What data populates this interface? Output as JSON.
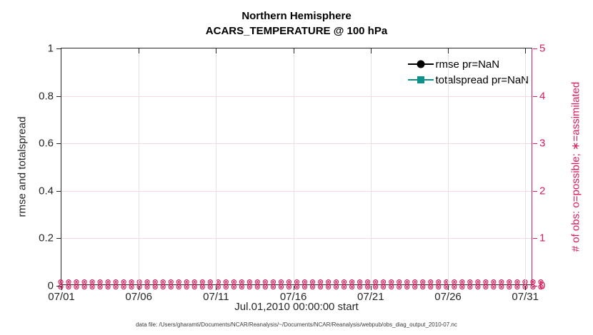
{
  "figure": {
    "title_line1": "Northern Hemisphere",
    "title_line2": "ACARS_TEMPERATURE @ 100 hPa",
    "xlabel": "Jul.01,2010 00:00:00 start",
    "footer": "data file: /Users/gharamti/Documents/NCAR/Reanalysis/~/Documents/NCAR/Reanalysis/webpub/obs_diag_output_2010-07.nc"
  },
  "colors": {
    "pink_accent": "#d81c5c",
    "teal_accent": "#0f918b",
    "axis_dark": "#262626",
    "grid_vertical": "#e3e3e3",
    "grid_horizontal_pink": "#f7d9e4"
  },
  "legend": {
    "items": [
      {
        "label": "rmse pr=NaN",
        "color": "#000000",
        "marker": "circle"
      },
      {
        "label": "totalspread pr=NaN",
        "color": "#0f918b",
        "marker": "square"
      }
    ]
  },
  "chart_data": {
    "type": "line",
    "title": "Northern Hemisphere",
    "subtitle": "ACARS_TEMPERATURE @ 100 hPa",
    "xlabel": "Jul.01,2010 00:00:00 start",
    "x_tick_labels": [
      "07/01",
      "07/06",
      "07/11",
      "07/16",
      "07/21",
      "07/26",
      "07/31"
    ],
    "x_tick_days": [
      0,
      5,
      10,
      15,
      20,
      25,
      30
    ],
    "x_axis_day_span": 30.5,
    "left_axis": {
      "label": "rmse and totalspread",
      "ticks": [
        0,
        0.2,
        0.4,
        0.6,
        0.8,
        1
      ],
      "range": [
        0,
        1
      ]
    },
    "right_axis": {
      "label": "# of obs: o=possible; ∗=assimilated",
      "ticks": [
        0,
        1,
        2,
        3,
        4,
        5
      ],
      "range": [
        0,
        5
      ]
    },
    "grid": {
      "on": true,
      "legend_position": "northeast inside, no box"
    },
    "series": [
      {
        "name": "rmse pr=NaN",
        "axis": "left",
        "color": "#000000",
        "marker": "circle",
        "values_constant": null,
        "note": "all NaN - no line drawn"
      },
      {
        "name": "totalspread pr=NaN",
        "axis": "left",
        "color": "#0f918b",
        "marker": "square",
        "values_constant": null,
        "note": "all NaN - no line drawn"
      },
      {
        "name": "# of obs possible (o)",
        "axis": "right",
        "color": "#d81c5c",
        "marker": "o",
        "values_constant": 0,
        "n_points": 124,
        "marker_glyph": "⊗"
      },
      {
        "name": "# of obs assimilated (∗)",
        "axis": "right",
        "color": "#d81c5c",
        "marker": "∗",
        "values_constant": 0,
        "n_points": 124,
        "marker_glyph": "⊗"
      }
    ]
  }
}
